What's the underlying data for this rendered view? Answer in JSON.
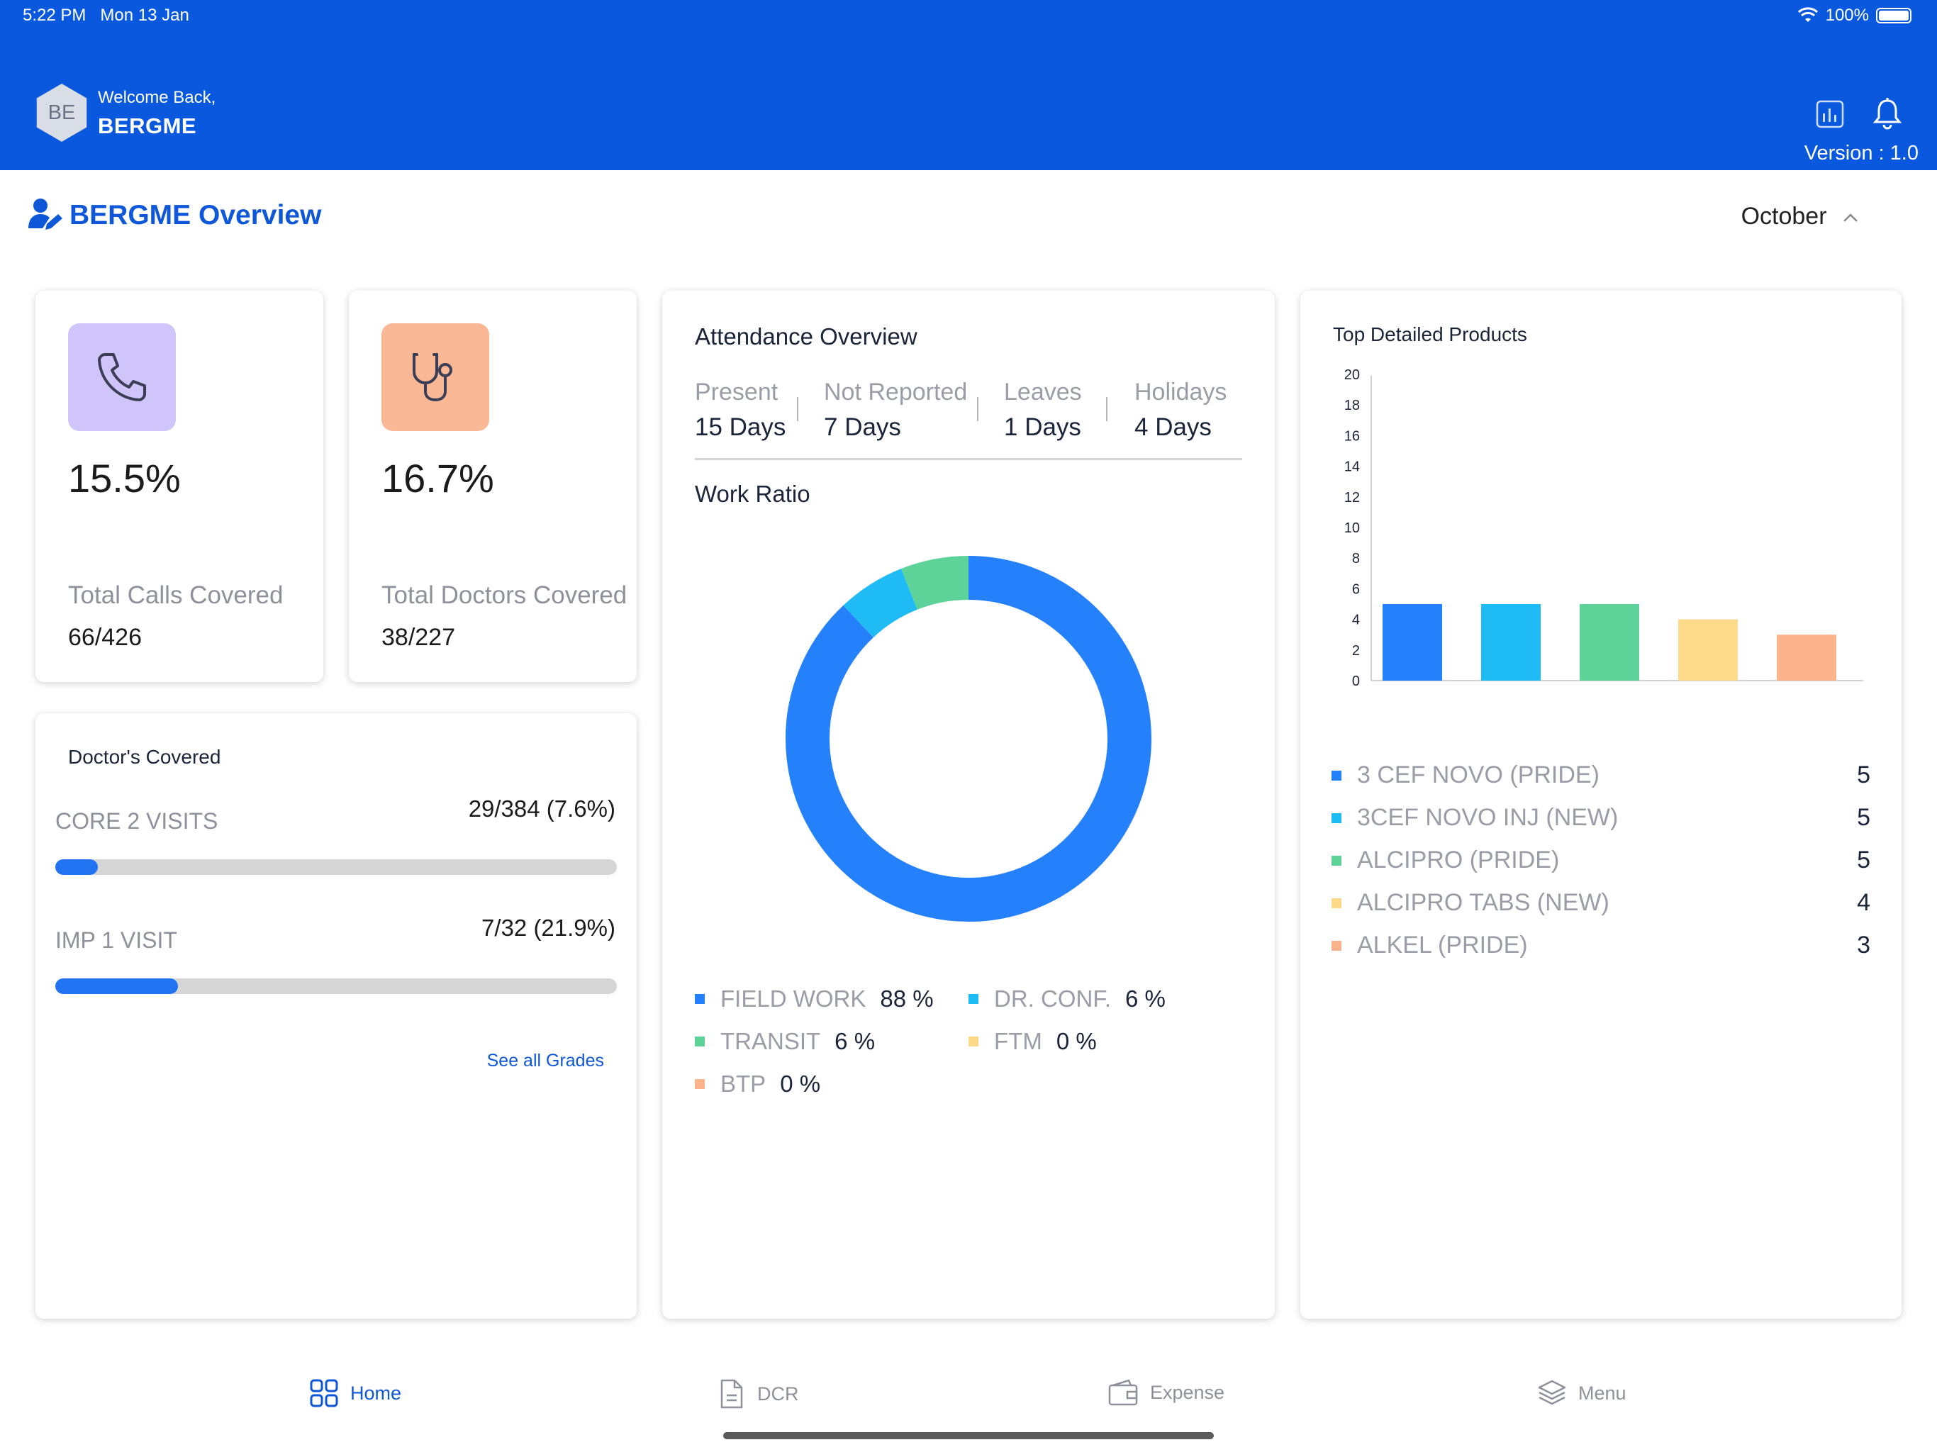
{
  "status": {
    "time": "5:22 PM",
    "date": "Mon 13 Jan",
    "battery": "100%"
  },
  "header": {
    "avatar_initials": "BE",
    "welcome": "Welcome Back,",
    "user": "BERGME",
    "version": "Version : 1.0",
    "icons": [
      "chart-icon",
      "bell-icon"
    ]
  },
  "overview": {
    "title": "BERGME Overview",
    "month": "October"
  },
  "stats": [
    {
      "value": "15.5%",
      "label": "Total Calls Covered",
      "count": "66/426",
      "icon": "phone-icon",
      "color": "#cfc5fb"
    },
    {
      "value": "16.7%",
      "label": "Total Doctors Covered",
      "count": "38/227",
      "icon": "stethoscope-icon",
      "color": "#fbb896"
    }
  ],
  "doctors_covered": {
    "title": "Doctor's Covered",
    "grades": [
      {
        "label": "CORE 2 VISITS",
        "value": "29/384 (7.6%)",
        "progress": 0.076
      },
      {
        "label": "IMP 1 VISIT",
        "value": "7/32 (21.9%)",
        "progress": 0.219
      }
    ],
    "link": "See all Grades"
  },
  "attendance": {
    "title": "Attendance Overview",
    "items": [
      {
        "label": "Present",
        "value": "15 Days"
      },
      {
        "label": "Not Reported",
        "value": "7 Days"
      },
      {
        "label": "Leaves",
        "value": "1 Days"
      },
      {
        "label": "Holidays",
        "value": "4 Days"
      }
    ],
    "work_ratio_title": "Work Ratio",
    "legend": [
      {
        "name": "FIELD WORK",
        "pct": "88 %",
        "color": "#2580fb"
      },
      {
        "name": "DR. CONF.",
        "pct": "6 %",
        "color": "#1fbbf4"
      },
      {
        "name": "TRANSIT",
        "pct": "6 %",
        "color": "#5dd39a"
      },
      {
        "name": "FTM",
        "pct": "0 %",
        "color": "#fdd98a"
      },
      {
        "name": "BTP",
        "pct": "0 %",
        "color": "#fbb38c"
      }
    ]
  },
  "products": {
    "title": "Top Detailed Products",
    "items": [
      {
        "name": "3 CEF NOVO (PRIDE)",
        "value": "5",
        "color": "#2580fb"
      },
      {
        "name": "3CEF NOVO INJ (NEW)",
        "value": "5",
        "color": "#1fbbf4"
      },
      {
        "name": "ALCIPRO (PRIDE)",
        "value": "5",
        "color": "#5dd39a"
      },
      {
        "name": "ALCIPRO TABS (NEW)",
        "value": "4",
        "color": "#fdd98a"
      },
      {
        "name": "ALKEL (PRIDE)",
        "value": "3",
        "color": "#fbb38c"
      }
    ]
  },
  "chart_data": [
    {
      "type": "pie",
      "title": "Work Ratio",
      "categories": [
        "FIELD WORK",
        "DR. CONF.",
        "TRANSIT",
        "FTM",
        "BTP"
      ],
      "values": [
        88,
        6,
        6,
        0,
        0
      ],
      "colors": [
        "#2580fb",
        "#1fbbf4",
        "#5dd39a",
        "#fdd98a",
        "#fbb38c"
      ],
      "donut": true
    },
    {
      "type": "bar",
      "title": "Top Detailed Products",
      "categories": [
        "3 CEF NOVO (PRIDE)",
        "3CEF NOVO INJ (NEW)",
        "ALCIPRO (PRIDE)",
        "ALCIPRO TABS (NEW)",
        "ALKEL (PRIDE)"
      ],
      "values": [
        5,
        5,
        5,
        4,
        3
      ],
      "colors": [
        "#2580fb",
        "#1fbbf4",
        "#5dd39a",
        "#fdd98a",
        "#fbb38c"
      ],
      "yticks": [
        "0",
        "2",
        "4",
        "6",
        "8",
        "10",
        "12",
        "14",
        "16",
        "18",
        "20"
      ],
      "ylim": [
        0,
        20
      ],
      "grid": false
    }
  ],
  "nav": [
    {
      "label": "Home",
      "active": true
    },
    {
      "label": "DCR",
      "active": false
    },
    {
      "label": "Expense",
      "active": false
    },
    {
      "label": "Menu",
      "active": false
    }
  ]
}
